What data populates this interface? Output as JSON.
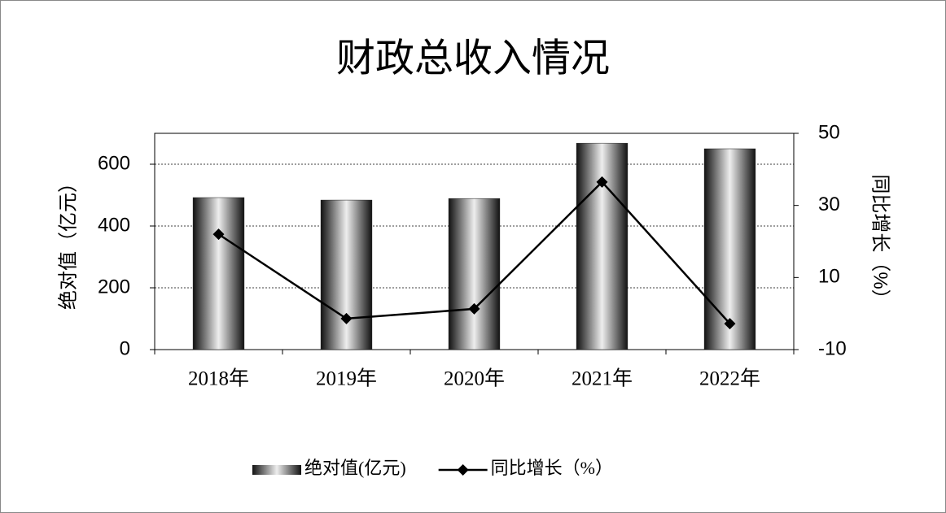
{
  "chart_data": {
    "type": "bar-line",
    "title": "财政总收入情况",
    "y_label": "绝对值（亿元）",
    "y2_label": "同比增长（%）",
    "categories": [
      "2018年",
      "2019年",
      "2020年",
      "2021年",
      "2022年"
    ],
    "series": [
      {
        "name": "绝对值(亿元)",
        "type": "bar",
        "color": "#1a1a1a",
        "values": [
          492,
          484,
          489,
          668,
          650
        ]
      },
      {
        "name": "同比增长（%）",
        "type": "line",
        "axis": "y2",
        "color": "#000000",
        "values": [
          22.0,
          -1.4,
          1.3,
          36.5,
          -2.8
        ]
      }
    ],
    "ylim": [
      0,
      700
    ],
    "yticks": [
      0,
      200,
      400,
      600
    ],
    "y2lim": [
      -10,
      50
    ],
    "y2ticks": [
      -10,
      10,
      30,
      50
    ],
    "grid": true,
    "legend": "bottom"
  }
}
